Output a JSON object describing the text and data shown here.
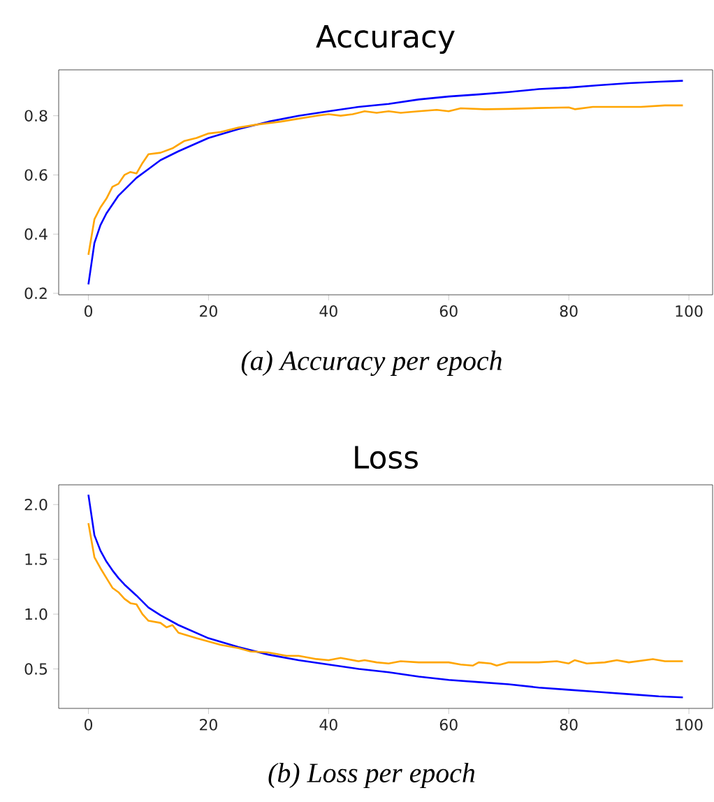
{
  "chart_data": [
    {
      "type": "line",
      "title": "Accuracy",
      "annotations": [
        "*(a) Accuracy per epoch*"
      ],
      "marker": "none",
      "xlim": [
        -4.95,
        103.95
      ],
      "ylim": [
        0.195,
        0.955
      ],
      "xticks": [
        0,
        20,
        40,
        60,
        80,
        100
      ],
      "yticks": [
        0.2,
        0.4,
        0.6,
        0.8
      ],
      "series": [
        {
          "color": "#0000ff",
          "x": [
            0,
            1,
            2,
            3,
            4,
            5,
            6,
            8,
            10,
            12,
            15,
            20,
            25,
            30,
            35,
            40,
            45,
            50,
            55,
            60,
            65,
            70,
            75,
            80,
            85,
            90,
            95,
            99
          ],
          "values": [
            0.23,
            0.37,
            0.43,
            0.47,
            0.5,
            0.53,
            0.55,
            0.59,
            0.62,
            0.65,
            0.68,
            0.725,
            0.755,
            0.78,
            0.8,
            0.815,
            0.83,
            0.84,
            0.855,
            0.865,
            0.872,
            0.88,
            0.89,
            0.895,
            0.903,
            0.91,
            0.915,
            0.918
          ]
        },
        {
          "color": "#ffa500",
          "x": [
            0,
            1,
            2,
            3,
            4,
            5,
            6,
            7,
            8,
            9,
            10,
            12,
            14,
            16,
            18,
            20,
            22,
            25,
            28,
            32,
            35,
            38,
            40,
            42,
            44,
            46,
            48,
            50,
            52,
            55,
            58,
            60,
            62,
            66,
            70,
            75,
            80,
            81,
            84,
            88,
            92,
            96,
            99
          ],
          "values": [
            0.33,
            0.45,
            0.49,
            0.52,
            0.56,
            0.57,
            0.6,
            0.61,
            0.605,
            0.64,
            0.67,
            0.675,
            0.69,
            0.715,
            0.725,
            0.74,
            0.745,
            0.76,
            0.77,
            0.78,
            0.79,
            0.8,
            0.805,
            0.8,
            0.805,
            0.815,
            0.81,
            0.815,
            0.81,
            0.815,
            0.82,
            0.815,
            0.825,
            0.822,
            0.823,
            0.826,
            0.828,
            0.822,
            0.83,
            0.83,
            0.83,
            0.835,
            0.835
          ]
        }
      ]
    },
    {
      "type": "line",
      "title": "Loss",
      "annotations": [
        "*(b) Loss per epoch*"
      ],
      "marker": "none",
      "xlim": [
        -4.95,
        103.95
      ],
      "ylim": [
        0.14,
        2.18
      ],
      "xticks": [
        0,
        20,
        40,
        60,
        80,
        100
      ],
      "yticks": [
        0.5,
        {
          "value": 1.0,
          "label": "1.0"
        },
        1.5,
        {
          "value": 2.0,
          "label": "2.0"
        }
      ],
      "series": [
        {
          "color": "#0000ff",
          "x": [
            0,
            1,
            2,
            3,
            4,
            5,
            6,
            8,
            10,
            12,
            15,
            20,
            25,
            30,
            35,
            40,
            45,
            50,
            55,
            60,
            65,
            70,
            75,
            80,
            85,
            90,
            95,
            99
          ],
          "values": [
            2.09,
            1.72,
            1.58,
            1.48,
            1.4,
            1.33,
            1.27,
            1.17,
            1.06,
            0.99,
            0.9,
            0.78,
            0.7,
            0.63,
            0.58,
            0.54,
            0.5,
            0.47,
            0.43,
            0.4,
            0.38,
            0.36,
            0.33,
            0.31,
            0.29,
            0.27,
            0.25,
            0.24
          ]
        },
        {
          "color": "#ffa500",
          "x": [
            0,
            1,
            2,
            3,
            4,
            5,
            6,
            7,
            8,
            9,
            10,
            12,
            13,
            14,
            15,
            18,
            20,
            22,
            25,
            27,
            30,
            33,
            35,
            38,
            40,
            42,
            45,
            46,
            48,
            50,
            52,
            55,
            60,
            62,
            64,
            65,
            67,
            68,
            70,
            75,
            78,
            80,
            81,
            83,
            86,
            88,
            90,
            94,
            96,
            99
          ],
          "values": [
            1.83,
            1.52,
            1.42,
            1.33,
            1.24,
            1.2,
            1.14,
            1.1,
            1.09,
            1.0,
            0.94,
            0.92,
            0.88,
            0.9,
            0.83,
            0.78,
            0.75,
            0.72,
            0.69,
            0.66,
            0.65,
            0.62,
            0.62,
            0.59,
            0.58,
            0.6,
            0.57,
            0.58,
            0.56,
            0.55,
            0.57,
            0.56,
            0.56,
            0.54,
            0.53,
            0.56,
            0.55,
            0.53,
            0.56,
            0.56,
            0.57,
            0.55,
            0.58,
            0.55,
            0.56,
            0.58,
            0.56,
            0.59,
            0.57,
            0.57
          ]
        }
      ]
    }
  ]
}
